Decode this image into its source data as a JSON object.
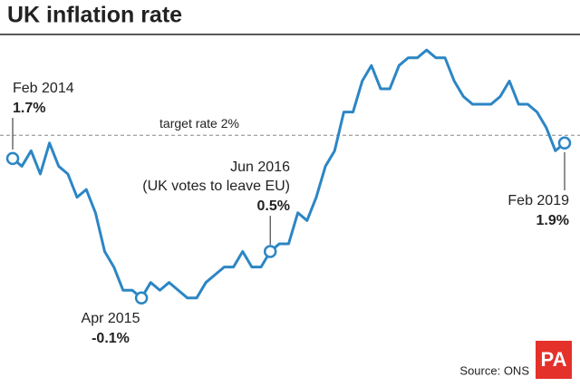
{
  "chart_data": {
    "type": "line",
    "title": "UK inflation rate",
    "source": "Source: ONS",
    "logo": "PA",
    "color": "#2c86c4",
    "ylim": [
      -0.5,
      3.5
    ],
    "target": {
      "value": 2,
      "label": "target rate 2%"
    },
    "event_note": "(UK votes to leave EU)",
    "categories": [
      "Feb 2014",
      null,
      null,
      null,
      null,
      null,
      null,
      null,
      null,
      null,
      null,
      null,
      null,
      null,
      "Apr 2015",
      null,
      null,
      null,
      null,
      null,
      null,
      null,
      null,
      null,
      null,
      null,
      null,
      null,
      "Jun 2016",
      null,
      null,
      null,
      null,
      null,
      null,
      null,
      null,
      null,
      null,
      null,
      null,
      null,
      null,
      null,
      null,
      null,
      null,
      null,
      null,
      null,
      null,
      null,
      null,
      null,
      null,
      null,
      null,
      null,
      null,
      null,
      "Feb 2019"
    ],
    "values": [
      1.7,
      1.6,
      1.8,
      1.5,
      1.9,
      1.6,
      1.5,
      1.2,
      1.3,
      1.0,
      0.5,
      0.3,
      0.0,
      0.0,
      -0.1,
      0.1,
      0.0,
      0.1,
      0.0,
      -0.1,
      -0.1,
      0.1,
      0.2,
      0.3,
      0.3,
      0.5,
      0.3,
      0.3,
      0.5,
      0.6,
      0.6,
      1.0,
      0.9,
      1.2,
      1.6,
      1.8,
      2.3,
      2.3,
      2.7,
      2.9,
      2.6,
      2.6,
      2.9,
      3.0,
      3.0,
      3.1,
      3.0,
      3.0,
      2.7,
      2.5,
      2.4,
      2.4,
      2.4,
      2.5,
      2.7,
      2.4,
      2.4,
      2.3,
      2.1,
      1.8,
      1.9
    ],
    "value_labels": [
      "1.7%",
      null,
      null,
      null,
      null,
      null,
      null,
      null,
      null,
      null,
      null,
      null,
      null,
      null,
      "-0.1%",
      null,
      null,
      null,
      null,
      null,
      null,
      null,
      null,
      null,
      null,
      null,
      null,
      null,
      "0.5%",
      null,
      null,
      null,
      null,
      null,
      null,
      null,
      null,
      null,
      null,
      null,
      null,
      null,
      null,
      null,
      null,
      null,
      null,
      null,
      null,
      null,
      null,
      null,
      null,
      null,
      null,
      null,
      null,
      null,
      null,
      null,
      "1.9%"
    ]
  }
}
